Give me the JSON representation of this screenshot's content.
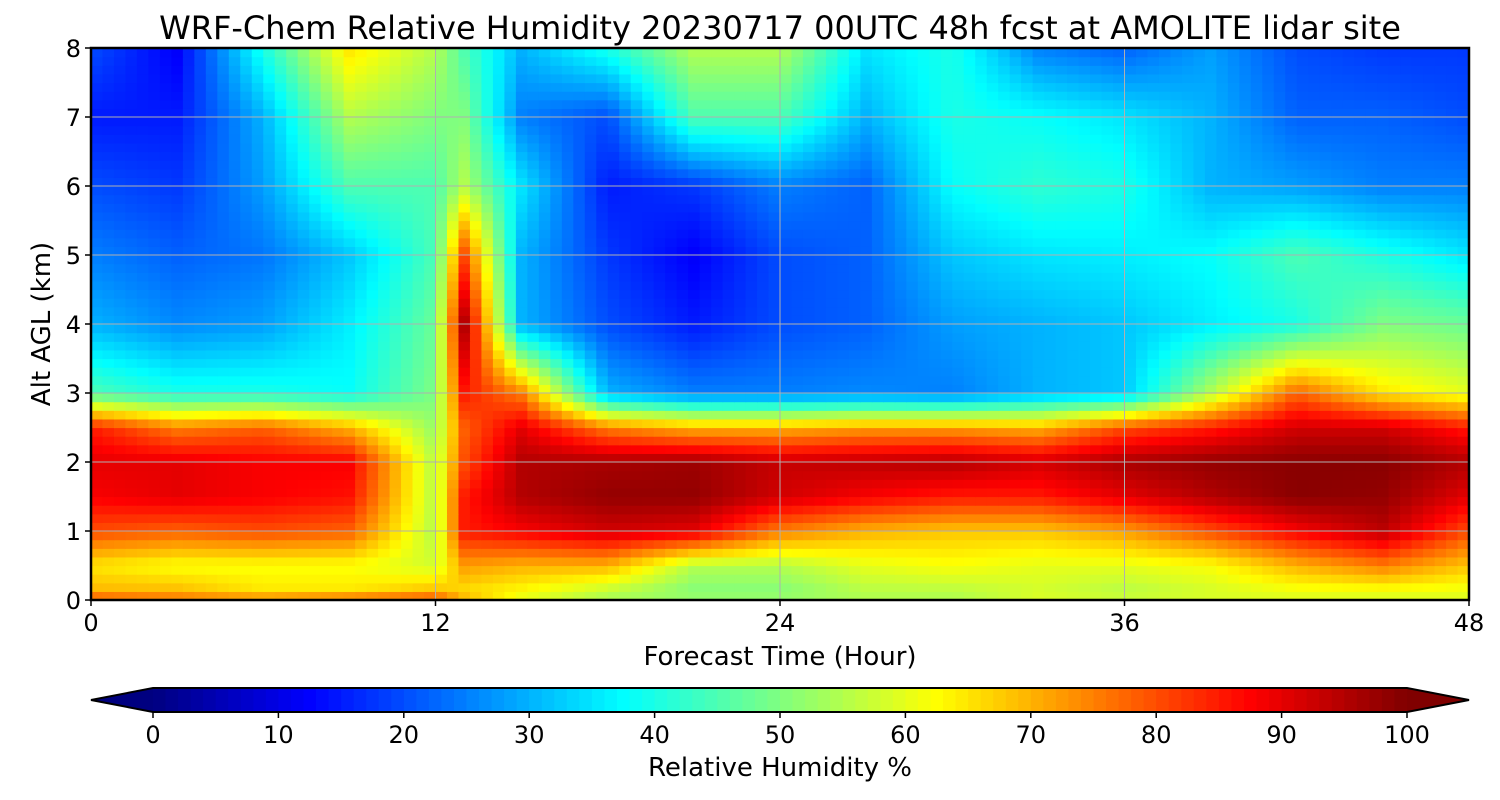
{
  "chart_data": {
    "type": "heatmap",
    "title": "WRF-Chem Relative Humidity 20230717 00UTC 48h fcst at AMOLITE lidar site",
    "xlabel": "Forecast Time (Hour)",
    "ylabel": "Alt AGL (km)",
    "xlim": [
      0,
      48
    ],
    "ylim": [
      0,
      8
    ],
    "xticks": [
      0,
      12,
      24,
      36,
      48
    ],
    "yticks": [
      0,
      1,
      2,
      3,
      4,
      5,
      6,
      7,
      8
    ],
    "grid": true,
    "colormap": "jet",
    "colorbar": {
      "label": "Relative Humidity %",
      "min": 0,
      "max": 100,
      "ticks": [
        0,
        10,
        20,
        30,
        40,
        50,
        60,
        70,
        80,
        90,
        100
      ],
      "extend": "both",
      "orientation": "horizontal",
      "placement": "bottom"
    },
    "x": [
      0,
      3,
      6,
      9,
      12,
      13,
      15,
      18,
      21,
      24,
      27,
      30,
      33,
      36,
      39,
      42,
      45,
      48
    ],
    "y": [
      0,
      0.1,
      0.5,
      1,
      1.5,
      2,
      2.5,
      3,
      4,
      5,
      6,
      7,
      8
    ],
    "z": [
      [
        85,
        80,
        80,
        85,
        85,
        75,
        60,
        55,
        55,
        55,
        55,
        55,
        60,
        60,
        60,
        60,
        60,
        60
      ],
      [
        70,
        70,
        65,
        65,
        70,
        65,
        62,
        55,
        50,
        50,
        55,
        55,
        58,
        55,
        58,
        60,
        60,
        60
      ],
      [
        65,
        62,
        62,
        62,
        58,
        72,
        70,
        70,
        55,
        55,
        60,
        62,
        60,
        60,
        62,
        70,
        75,
        68
      ],
      [
        80,
        78,
        80,
        78,
        55,
        85,
        88,
        92,
        90,
        75,
        70,
        68,
        68,
        72,
        80,
        88,
        94,
        80
      ],
      [
        88,
        90,
        88,
        86,
        55,
        85,
        95,
        98,
        98,
        92,
        88,
        85,
        85,
        90,
        95,
        99,
        98,
        90
      ],
      [
        90,
        90,
        88,
        88,
        55,
        80,
        95,
        96,
        97,
        93,
        94,
        95,
        92,
        96,
        98,
        99,
        99,
        95
      ],
      [
        85,
        75,
        78,
        70,
        52,
        78,
        90,
        75,
        70,
        70,
        72,
        72,
        70,
        80,
        85,
        92,
        92,
        85
      ],
      [
        45,
        40,
        40,
        38,
        50,
        85,
        75,
        30,
        25,
        25,
        26,
        25,
        30,
        32,
        55,
        78,
        65,
        60
      ],
      [
        30,
        26,
        28,
        36,
        48,
        95,
        30,
        20,
        15,
        20,
        22,
        28,
        30,
        32,
        36,
        40,
        50,
        48
      ],
      [
        25,
        22,
        24,
        32,
        45,
        80,
        30,
        18,
        12,
        20,
        22,
        32,
        35,
        36,
        38,
        45,
        40,
        35
      ],
      [
        20,
        18,
        28,
        45,
        45,
        55,
        35,
        15,
        18,
        25,
        22,
        38,
        42,
        40,
        30,
        28,
        25,
        25
      ],
      [
        15,
        15,
        30,
        55,
        50,
        50,
        25,
        20,
        45,
        45,
        30,
        40,
        38,
        35,
        30,
        22,
        22,
        20
      ],
      [
        20,
        12,
        40,
        65,
        55,
        45,
        30,
        40,
        55,
        55,
        35,
        40,
        25,
        22,
        28,
        20,
        18,
        18
      ]
    ]
  }
}
